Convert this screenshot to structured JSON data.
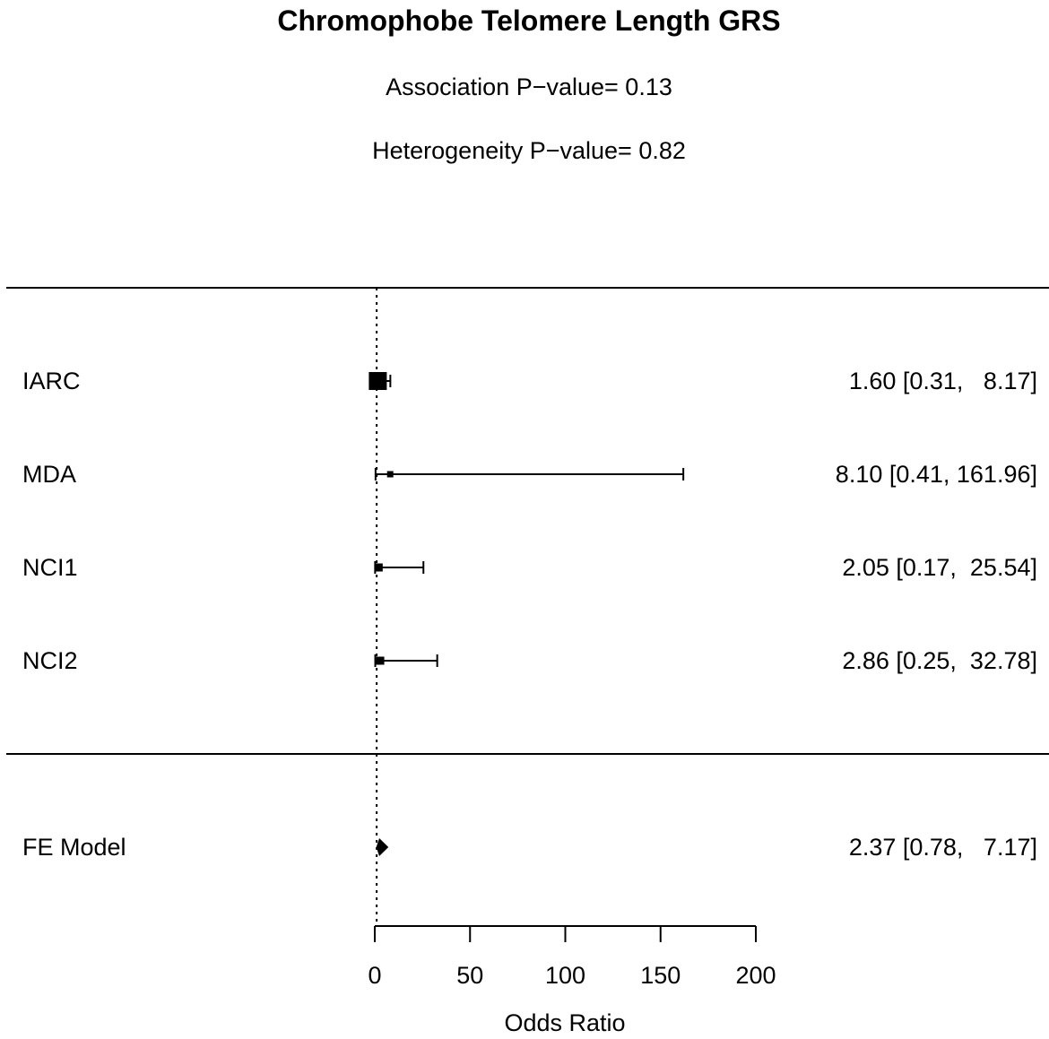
{
  "chart_data": {
    "type": "forest",
    "title": "Chromophobe Telomere Length GRS",
    "subtitle_lines": [
      "Association P−value= 0.13",
      "Heterogeneity P−value= 0.82"
    ],
    "xlabel": "Odds Ratio",
    "xlim": [
      0,
      200
    ],
    "x_ticks": [
      0,
      50,
      100,
      150,
      200
    ],
    "x_tick_labels": [
      "0",
      "50",
      "100",
      "150",
      "200"
    ],
    "reference_line": 1,
    "studies": [
      {
        "label": "IARC",
        "or": 1.6,
        "ci_lower": 0.31,
        "ci_upper": 8.17,
        "ci_text": "1.60 [0.31,   8.17]",
        "marker_size": 20
      },
      {
        "label": "MDA",
        "or": 8.1,
        "ci_lower": 0.41,
        "ci_upper": 161.96,
        "ci_text": "8.10 [0.41, 161.96]",
        "marker_size": 7
      },
      {
        "label": "NCI1",
        "or": 2.05,
        "ci_lower": 0.17,
        "ci_upper": 25.54,
        "ci_text": "2.05 [0.17,  25.54]",
        "marker_size": 9
      },
      {
        "label": "NCI2",
        "or": 2.86,
        "ci_lower": 0.25,
        "ci_upper": 32.78,
        "ci_text": "2.86 [0.25,  32.78]",
        "marker_size": 9
      }
    ],
    "summary": {
      "label": "FE Model",
      "or": 2.37,
      "ci_lower": 0.78,
      "ci_upper": 7.17,
      "ci_text": "2.37 [0.78,   7.17]"
    },
    "grid": false,
    "legend": "none"
  }
}
